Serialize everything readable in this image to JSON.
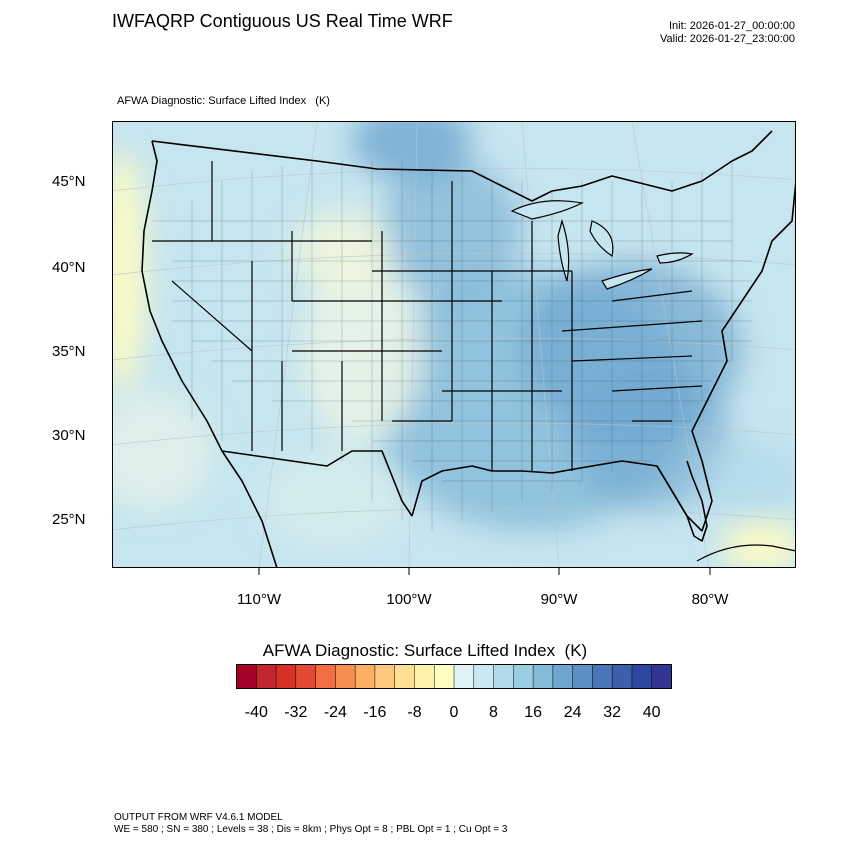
{
  "header": {
    "title": "IWFAQRP Contiguous US Real Time WRF",
    "init": "Init: 2026-01-27_00:00:00",
    "valid": "Valid: 2026-01-27_23:00:00",
    "subtitle": "AFWA Diagnostic: Surface Lifted Index   (K)"
  },
  "map": {
    "projection": "lambert-conformal",
    "lat_labels": [
      "45°N",
      "40°N",
      "35°N",
      "30°N",
      "25°N"
    ],
    "lon_labels": [
      "110°W",
      "100°W",
      "90°W",
      "80°W"
    ],
    "colors": {
      "border": "#000000",
      "low_lift_yellow": "#fdfbc4",
      "light_blue": "#c6e5ef",
      "mid_blue": "#9ccbe1",
      "dark_blue": "#6fa6cf"
    }
  },
  "colorbar": {
    "title": "AFWA Diagnostic: Surface Lifted Index  (K)",
    "labels": [
      "-40",
      "-32",
      "-24",
      "-16",
      "-8",
      "0",
      "8",
      "16",
      "24",
      "32",
      "40"
    ],
    "colors": [
      "#a50026",
      "#c1272d",
      "#d73027",
      "#e34a33",
      "#f46d43",
      "#f88d52",
      "#fdae61",
      "#fec77e",
      "#fee090",
      "#fff3ac",
      "#ffffbf",
      "#e0f3f8",
      "#c9e8f1",
      "#b1dbea",
      "#99cde2",
      "#84bad9",
      "#6fa6cf",
      "#5c8fc4",
      "#4a77b8",
      "#3c5fab",
      "#2e47a0",
      "#313695"
    ]
  },
  "footer": {
    "line1": "OUTPUT FROM WRF V4.6.1 MODEL",
    "line2": "WE = 580 ; SN = 380 ; Levels = 38 ; Dis = 8km ; Phys Opt = 8 ; PBL Opt = 1 ; Cu Opt = 3"
  }
}
